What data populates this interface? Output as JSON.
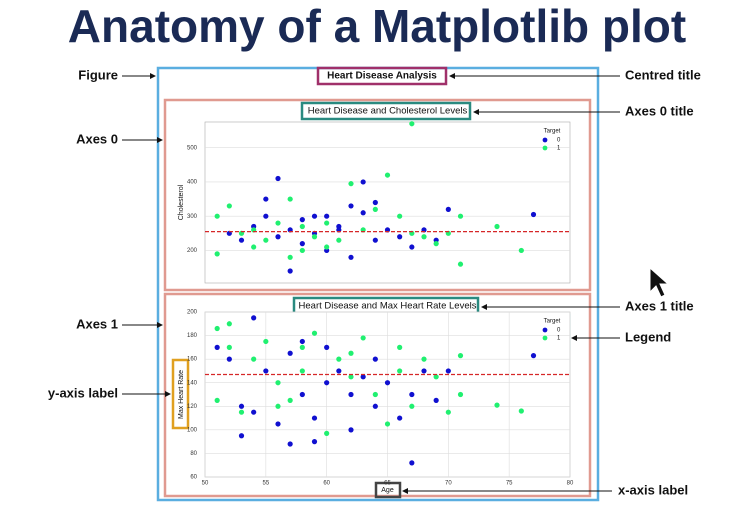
{
  "page_title": "Anatomy of a Matplotlib plot",
  "figure_title": "Heart Disease Analysis",
  "annotations": {
    "figure": "Figure",
    "centred_title": "Centred title",
    "axes0": "Axes 0",
    "axes0_title": "Axes 0 title",
    "axes1": "Axes 1",
    "axes1_title": "Axes 1 title",
    "legend": "Legend",
    "y_axis_label": "y-axis label",
    "x_axis_label": "x-axis label"
  },
  "chart_data": [
    {
      "type": "scatter",
      "title": "Heart Disease and Cholesterol Levels",
      "y_label": "Cholesterol",
      "xlim": [
        50,
        80
      ],
      "ylim": [
        105,
        575
      ],
      "yticks": [
        200,
        300,
        400,
        500
      ],
      "grid": true,
      "legend_title": "Target",
      "legend": "upper right",
      "mean_line": 255,
      "mean_color": "#d62728",
      "series": [
        {
          "name": "0",
          "color": "#1010d0",
          "x": [
            52,
            53,
            54,
            55,
            56,
            56,
            57,
            58,
            58,
            59,
            60,
            60,
            61,
            62,
            62,
            63,
            64,
            64,
            65,
            66,
            67,
            68,
            69,
            70,
            77,
            55,
            57,
            59,
            61,
            63
          ],
          "y": [
            250,
            230,
            270,
            300,
            410,
            240,
            260,
            290,
            220,
            250,
            300,
            200,
            270,
            330,
            180,
            310,
            340,
            230,
            260,
            240,
            210,
            260,
            230,
            320,
            305,
            350,
            140,
            300,
            260,
            400
          ]
        },
        {
          "name": "1",
          "color": "#20f070",
          "x": [
            51,
            51,
            52,
            53,
            54,
            55,
            56,
            57,
            58,
            58,
            59,
            60,
            61,
            62,
            63,
            64,
            65,
            66,
            67,
            68,
            69,
            70,
            71,
            71,
            74,
            76,
            54,
            57,
            60,
            67
          ],
          "y": [
            300,
            190,
            330,
            250,
            210,
            230,
            280,
            350,
            270,
            200,
            240,
            280,
            230,
            395,
            260,
            320,
            420,
            300,
            570,
            240,
            220,
            250,
            300,
            160,
            270,
            200,
            260,
            180,
            210,
            250
          ]
        }
      ]
    },
    {
      "type": "scatter",
      "title": "Heart Disease and Max Heart Rate Levels",
      "x_label": "Age",
      "y_label": "Max Heart Rate",
      "xlim": [
        50,
        80
      ],
      "xticks": [
        50,
        55,
        60,
        65,
        70,
        75,
        80
      ],
      "ylim": [
        60,
        200
      ],
      "yticks": [
        60,
        80,
        100,
        120,
        140,
        160,
        180,
        200
      ],
      "grid": true,
      "legend_title": "Target",
      "legend": "upper right",
      "mean_line": 147,
      "mean_color": "#d62728",
      "series": [
        {
          "name": "0",
          "color": "#1010d0",
          "x": [
            51,
            52,
            53,
            54,
            54,
            55,
            56,
            57,
            57,
            58,
            58,
            59,
            60,
            60,
            61,
            62,
            62,
            63,
            64,
            64,
            65,
            66,
            67,
            67,
            68,
            69,
            70,
            77,
            53,
            59
          ],
          "y": [
            170,
            160,
            95,
            195,
            115,
            150,
            105,
            88,
            165,
            130,
            175,
            90,
            170,
            140,
            150,
            100,
            130,
            145,
            120,
            160,
            140,
            110,
            72,
            130,
            150,
            125,
            150,
            163,
            120,
            110
          ]
        },
        {
          "name": "1",
          "color": "#20f070",
          "x": [
            51,
            51,
            52,
            53,
            54,
            55,
            56,
            57,
            58,
            58,
            59,
            60,
            61,
            62,
            63,
            64,
            65,
            66,
            67,
            68,
            69,
            70,
            71,
            71,
            74,
            76,
            52,
            56,
            62,
            66
          ],
          "y": [
            186,
            125,
            190,
            115,
            160,
            175,
            140,
            125,
            170,
            150,
            182,
            97,
            160,
            145,
            178,
            130,
            105,
            170,
            120,
            160,
            145,
            115,
            163,
            130,
            121,
            116,
            170,
            120,
            165,
            150
          ]
        }
      ]
    }
  ]
}
